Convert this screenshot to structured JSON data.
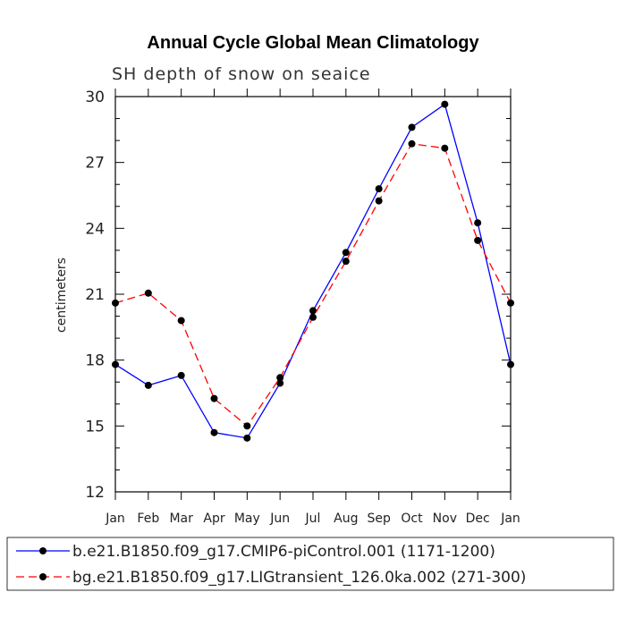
{
  "chart_data": {
    "type": "line",
    "title": "Annual Cycle Global Mean Climatology",
    "subtitle": "SH depth of snow on seaice",
    "xlabel": "",
    "ylabel": "centimeters",
    "ylim": [
      12,
      30
    ],
    "yticks": [
      "12",
      "15",
      "18",
      "21",
      "24",
      "27",
      "30"
    ],
    "categories": [
      "Jan",
      "Feb",
      "Mar",
      "Apr",
      "May",
      "Jun",
      "Jul",
      "Aug",
      "Sep",
      "Oct",
      "Nov",
      "Dec",
      "Jan"
    ],
    "grid": false,
    "legend_position": "bottom",
    "series": [
      {
        "name": "b.e21.B1850.f09_g17.CMIP6-piControl.001 (1171-1200)",
        "color": "#0000ff",
        "dash": "solid",
        "values": [
          17.8,
          16.85,
          17.3,
          14.7,
          14.45,
          16.95,
          20.25,
          22.9,
          25.8,
          28.6,
          29.65,
          24.25,
          17.8
        ]
      },
      {
        "name": "bg.e21.B1850.f09_g17.LIGtransient_126.0ka.002 (271-300)",
        "color": "#ff0000",
        "dash": "dashed",
        "values": [
          20.6,
          21.05,
          19.8,
          16.25,
          15.0,
          17.2,
          19.95,
          22.5,
          25.25,
          27.85,
          27.65,
          23.45,
          20.6
        ]
      }
    ]
  }
}
